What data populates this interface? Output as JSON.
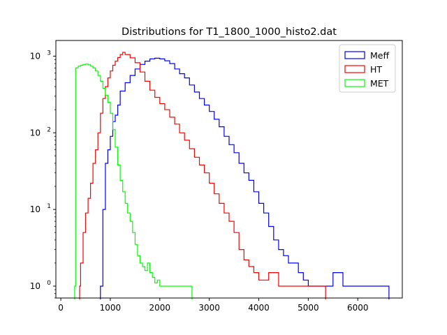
{
  "chart_data": {
    "type": "histogram-step",
    "title": "Distributions for T1_1800_1000_histo2.dat",
    "xlabel": "",
    "ylabel": "",
    "xlim": [
      -100,
      6900
    ],
    "ylim": [
      0.7,
      1600
    ],
    "y_scale": "log",
    "x_ticks": [
      0,
      1000,
      2000,
      3000,
      4000,
      5000,
      6000
    ],
    "x_tick_labels": [
      "0",
      "1000",
      "2000",
      "3000",
      "4000",
      "5000",
      "6000"
    ],
    "y_ticks": [
      1,
      10,
      100,
      1000
    ],
    "y_tick_labels": [
      "10^0",
      "10^1",
      "10^2",
      "10^3"
    ],
    "grid": false,
    "legend_position": "top-right",
    "series": [
      {
        "name": "Meff",
        "color": "#0000ff",
        "points": [
          [
            800,
            1
          ],
          [
            850,
            10
          ],
          [
            900,
            40
          ],
          [
            950,
            60
          ],
          [
            1000,
            90
          ],
          [
            1050,
            140
          ],
          [
            1100,
            170
          ],
          [
            1150,
            230
          ],
          [
            1200,
            350
          ],
          [
            1300,
            450
          ],
          [
            1400,
            560
          ],
          [
            1500,
            680
          ],
          [
            1600,
            780
          ],
          [
            1700,
            860
          ],
          [
            1800,
            920
          ],
          [
            1900,
            940
          ],
          [
            2000,
            920
          ],
          [
            2100,
            870
          ],
          [
            2200,
            800
          ],
          [
            2300,
            680
          ],
          [
            2400,
            590
          ],
          [
            2500,
            520
          ],
          [
            2600,
            420
          ],
          [
            2700,
            340
          ],
          [
            2800,
            280
          ],
          [
            2900,
            230
          ],
          [
            3000,
            190
          ],
          [
            3100,
            150
          ],
          [
            3200,
            120
          ],
          [
            3300,
            90
          ],
          [
            3400,
            70
          ],
          [
            3500,
            55
          ],
          [
            3600,
            40
          ],
          [
            3700,
            30
          ],
          [
            3800,
            24
          ],
          [
            3900,
            17
          ],
          [
            4000,
            12
          ],
          [
            4100,
            9
          ],
          [
            4200,
            6
          ],
          [
            4300,
            4
          ],
          [
            4400,
            3
          ],
          [
            4500,
            2.5
          ],
          [
            4600,
            2
          ],
          [
            4700,
            2
          ],
          [
            4800,
            1.5
          ],
          [
            4900,
            1.2
          ],
          [
            5000,
            1
          ],
          [
            5100,
            1
          ],
          [
            5300,
            1
          ],
          [
            5500,
            1.5
          ],
          [
            5700,
            1
          ],
          [
            5900,
            1
          ],
          [
            6100,
            1
          ],
          [
            6300,
            1
          ],
          [
            6580,
            1
          ]
        ]
      },
      {
        "name": "HT",
        "color": "#ff0000",
        "points": [
          [
            380,
            1
          ],
          [
            400,
            2
          ],
          [
            450,
            5
          ],
          [
            500,
            9
          ],
          [
            550,
            14
          ],
          [
            600,
            22
          ],
          [
            650,
            40
          ],
          [
            700,
            60
          ],
          [
            750,
            100
          ],
          [
            800,
            180
          ],
          [
            850,
            280
          ],
          [
            900,
            400
          ],
          [
            950,
            520
          ],
          [
            1000,
            640
          ],
          [
            1050,
            760
          ],
          [
            1100,
            860
          ],
          [
            1150,
            960
          ],
          [
            1200,
            1050
          ],
          [
            1250,
            1120
          ],
          [
            1300,
            1050
          ],
          [
            1400,
            950
          ],
          [
            1500,
            820
          ],
          [
            1600,
            620
          ],
          [
            1700,
            470
          ],
          [
            1800,
            360
          ],
          [
            1900,
            290
          ],
          [
            2000,
            240
          ],
          [
            2100,
            200
          ],
          [
            2200,
            160
          ],
          [
            2300,
            130
          ],
          [
            2400,
            100
          ],
          [
            2500,
            80
          ],
          [
            2600,
            62
          ],
          [
            2700,
            48
          ],
          [
            2800,
            38
          ],
          [
            2900,
            30
          ],
          [
            3000,
            22
          ],
          [
            3100,
            16
          ],
          [
            3200,
            12
          ],
          [
            3300,
            9
          ],
          [
            3400,
            7
          ],
          [
            3500,
            5
          ],
          [
            3600,
            3
          ],
          [
            3700,
            2.2
          ],
          [
            3800,
            1.8
          ],
          [
            3900,
            1.5
          ],
          [
            4000,
            1.2
          ],
          [
            4200,
            1.5
          ],
          [
            4400,
            1
          ],
          [
            4600,
            1
          ],
          [
            4800,
            1
          ],
          [
            5000,
            1
          ],
          [
            5300,
            1
          ]
        ]
      },
      {
        "name": "MET",
        "color": "#00ff00",
        "points": [
          [
            280,
            1
          ],
          [
            300,
            700
          ],
          [
            350,
            740
          ],
          [
            400,
            760
          ],
          [
            450,
            780
          ],
          [
            500,
            790
          ],
          [
            550,
            770
          ],
          [
            600,
            740
          ],
          [
            650,
            700
          ],
          [
            700,
            640
          ],
          [
            750,
            560
          ],
          [
            800,
            470
          ],
          [
            850,
            380
          ],
          [
            900,
            310
          ],
          [
            950,
            250
          ],
          [
            1000,
            180
          ],
          [
            1050,
            110
          ],
          [
            1100,
            65
          ],
          [
            1150,
            38
          ],
          [
            1200,
            24
          ],
          [
            1250,
            17
          ],
          [
            1300,
            12
          ],
          [
            1350,
            9
          ],
          [
            1400,
            7
          ],
          [
            1450,
            5
          ],
          [
            1500,
            3.5
          ],
          [
            1550,
            2.5
          ],
          [
            1600,
            2
          ],
          [
            1650,
            1.8
          ],
          [
            1700,
            1.6
          ],
          [
            1750,
            2
          ],
          [
            1800,
            1.5
          ],
          [
            1850,
            1.3
          ],
          [
            1900,
            1.1
          ],
          [
            1950,
            1.2
          ],
          [
            2000,
            1
          ],
          [
            2100,
            1
          ],
          [
            2200,
            1
          ],
          [
            2600,
            1
          ]
        ]
      }
    ]
  }
}
